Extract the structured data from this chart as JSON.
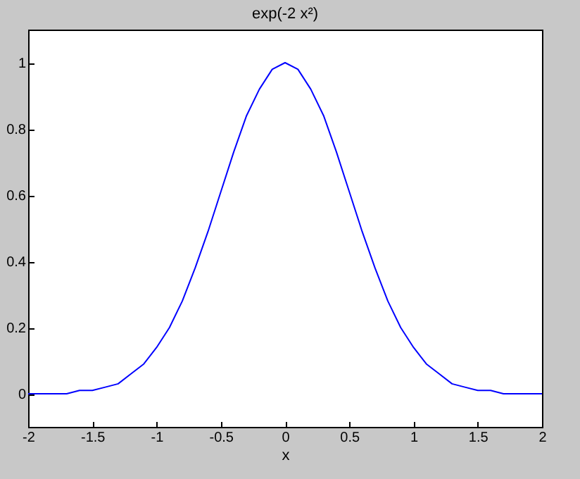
{
  "chart_data": {
    "type": "line",
    "title": "exp(-2 x²)",
    "xlabel": "x",
    "x": [
      -2,
      -1.9,
      -1.8,
      -1.7,
      -1.6,
      -1.5,
      -1.4,
      -1.3,
      -1.2,
      -1.1,
      -1,
      -0.9,
      -0.8,
      -0.7,
      -0.6,
      -0.5,
      -0.4,
      -0.3,
      -0.2,
      -0.1,
      0,
      0.1,
      0.2,
      0.3,
      0.4,
      0.5,
      0.6,
      0.7,
      0.8,
      0.9,
      1,
      1.1,
      1.2,
      1.3,
      1.4,
      1.5,
      1.6,
      1.7,
      1.8,
      1.9,
      2
    ],
    "series": [
      {
        "color": "#0000ff",
        "values": [
          0,
          0,
          0,
          0,
          0.01,
          0.01,
          0.02,
          0.03,
          0.06,
          0.09,
          0.14,
          0.2,
          0.28,
          0.38,
          0.49,
          0.61,
          0.73,
          0.84,
          0.92,
          0.98,
          1,
          0.98,
          0.92,
          0.84,
          0.73,
          0.61,
          0.49,
          0.38,
          0.28,
          0.2,
          0.14,
          0.09,
          0.06,
          0.03,
          0.02,
          0.01,
          0.01,
          0,
          0,
          0,
          0
        ]
      }
    ],
    "xlim": [
      -2,
      2
    ],
    "xticks": [
      -2,
      -1.5,
      -1,
      -0.5,
      0,
      0.5,
      1,
      1.5,
      2
    ],
    "ylim": [
      -0.1,
      1.1
    ],
    "yticks": [
      0,
      0.2,
      0.4,
      0.6,
      0.8,
      1
    ],
    "grid": false,
    "legend": false,
    "marker": "none",
    "line_style": "solid"
  }
}
